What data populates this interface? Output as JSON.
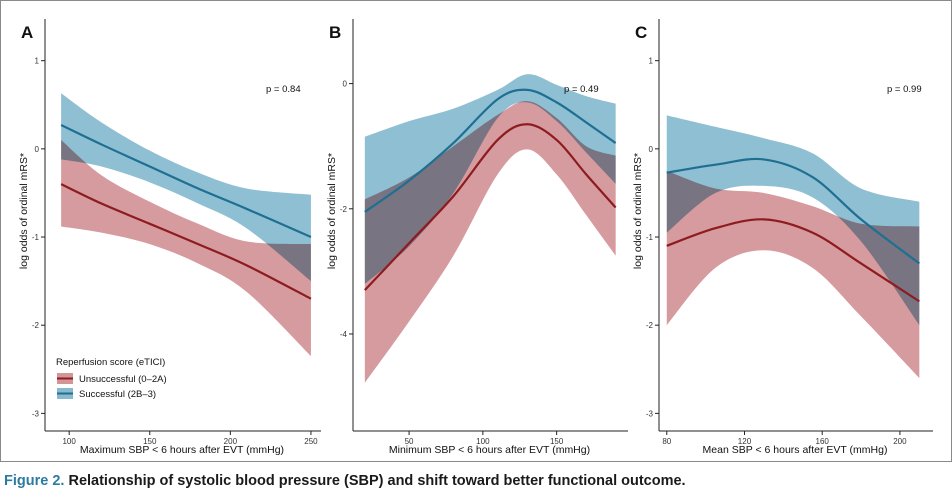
{
  "figure": {
    "label": "Figure 2.",
    "text": " Relationship of systolic blood pressure (SBP) and shift toward better functional outcome."
  },
  "colors": {
    "successful_line": "#1f6f93",
    "successful_band": "#6aa9c3",
    "unsuccessful_line": "#8e1b1f",
    "unsuccessful_band": "#c87a7e"
  },
  "legend": {
    "title": "Reperfusion score (eTICI)",
    "items": [
      {
        "label": "Unsuccessful (0–2A)",
        "series": "unsuccessful"
      },
      {
        "label": "Successful (2B–3)",
        "series": "successful"
      }
    ]
  },
  "chart_data": [
    {
      "type": "line",
      "panel": "A",
      "title": "",
      "xlabel": "Maximum SBP < 6 hours after EVT (mmHg)",
      "ylabel": "log odds of ordinal mRS*",
      "xlim": [
        85,
        255
      ],
      "ylim": [
        -3.2,
        1.45
      ],
      "xticks": [
        100,
        150,
        200,
        250
      ],
      "yticks": [
        1,
        0,
        -1,
        -2,
        -3
      ],
      "annotation": "p = 0.84",
      "series": [
        {
          "name": "Unsuccessful (0–2A)",
          "key": "unsuccessful",
          "x": [
            95,
            120,
            150,
            180,
            210,
            250
          ],
          "y": [
            -0.4,
            -0.62,
            -0.85,
            -1.08,
            -1.32,
            -1.7
          ],
          "lower": [
            -0.88,
            -0.95,
            -1.08,
            -1.3,
            -1.62,
            -2.35
          ],
          "upper": [
            0.1,
            -0.3,
            -0.6,
            -0.85,
            -1.05,
            -1.08
          ]
        },
        {
          "name": "Successful (2B–3)",
          "key": "successful",
          "x": [
            95,
            120,
            150,
            180,
            210,
            250
          ],
          "y": [
            0.27,
            0.05,
            -0.2,
            -0.45,
            -0.68,
            -1.0
          ],
          "lower": [
            -0.12,
            -0.2,
            -0.38,
            -0.62,
            -0.9,
            -1.5
          ],
          "upper": [
            0.63,
            0.3,
            -0.02,
            -0.27,
            -0.45,
            -0.52
          ]
        }
      ]
    },
    {
      "type": "line",
      "panel": "B",
      "title": "",
      "xlabel": "Minimum SBP < 6 hours after EVT (mmHg)",
      "ylabel": "log odds of ordinal mRS*",
      "xlim": [
        12,
        197
      ],
      "ylim": [
        -5.55,
        1.0
      ],
      "xticks": [
        50,
        100,
        150
      ],
      "yticks": [
        0,
        -2,
        -4
      ],
      "annotation": "p = 0.49",
      "series": [
        {
          "name": "Unsuccessful (0–2A)",
          "key": "unsuccessful",
          "x": [
            20,
            50,
            80,
            110,
            130,
            150,
            170,
            190
          ],
          "y": [
            -3.3,
            -2.55,
            -1.8,
            -0.9,
            -0.65,
            -0.9,
            -1.45,
            -1.98
          ],
          "lower": [
            -4.78,
            -3.8,
            -2.75,
            -1.45,
            -1.05,
            -1.45,
            -2.1,
            -2.75
          ],
          "upper": [
            -1.85,
            -1.5,
            -1.0,
            -0.5,
            -0.28,
            -0.55,
            -1.0,
            -1.15
          ]
        },
        {
          "name": "Successful (2B–3)",
          "key": "successful",
          "x": [
            20,
            50,
            80,
            110,
            130,
            150,
            170,
            190
          ],
          "y": [
            -2.05,
            -1.55,
            -0.95,
            -0.25,
            -0.1,
            -0.3,
            -0.62,
            -0.95
          ],
          "lower": [
            -3.2,
            -2.6,
            -1.75,
            -0.55,
            -0.3,
            -0.6,
            -1.1,
            -1.6
          ],
          "upper": [
            -0.85,
            -0.6,
            -0.4,
            -0.1,
            0.15,
            -0.02,
            -0.2,
            -0.32
          ]
        }
      ]
    },
    {
      "type": "line",
      "panel": "C",
      "title": "",
      "xlabel": "Mean SBP < 6 hours after EVT (mmHg)",
      "ylabel": "log odds of ordinal mRS*",
      "xlim": [
        76,
        216
      ],
      "ylim": [
        -3.2,
        1.45
      ],
      "xticks": [
        80,
        120,
        160,
        200
      ],
      "yticks": [
        1,
        0,
        -1,
        -2,
        -3
      ],
      "annotation": "p = 0.99",
      "series": [
        {
          "name": "Unsuccessful (0–2A)",
          "key": "unsuccessful",
          "x": [
            80,
            105,
            130,
            155,
            180,
            210
          ],
          "y": [
            -1.1,
            -0.9,
            -0.8,
            -0.95,
            -1.3,
            -1.73
          ],
          "lower": [
            -2.0,
            -1.35,
            -1.15,
            -1.35,
            -1.9,
            -2.6
          ],
          "upper": [
            -0.25,
            -0.45,
            -0.5,
            -0.65,
            -0.85,
            -0.88
          ]
        },
        {
          "name": "Successful (2B–3)",
          "key": "successful",
          "x": [
            80,
            105,
            130,
            155,
            180,
            210
          ],
          "y": [
            -0.27,
            -0.18,
            -0.12,
            -0.32,
            -0.8,
            -1.3
          ],
          "lower": [
            -0.95,
            -0.5,
            -0.42,
            -0.55,
            -1.05,
            -2.0
          ],
          "upper": [
            0.38,
            0.25,
            0.12,
            -0.05,
            -0.45,
            -0.6
          ]
        }
      ]
    }
  ]
}
